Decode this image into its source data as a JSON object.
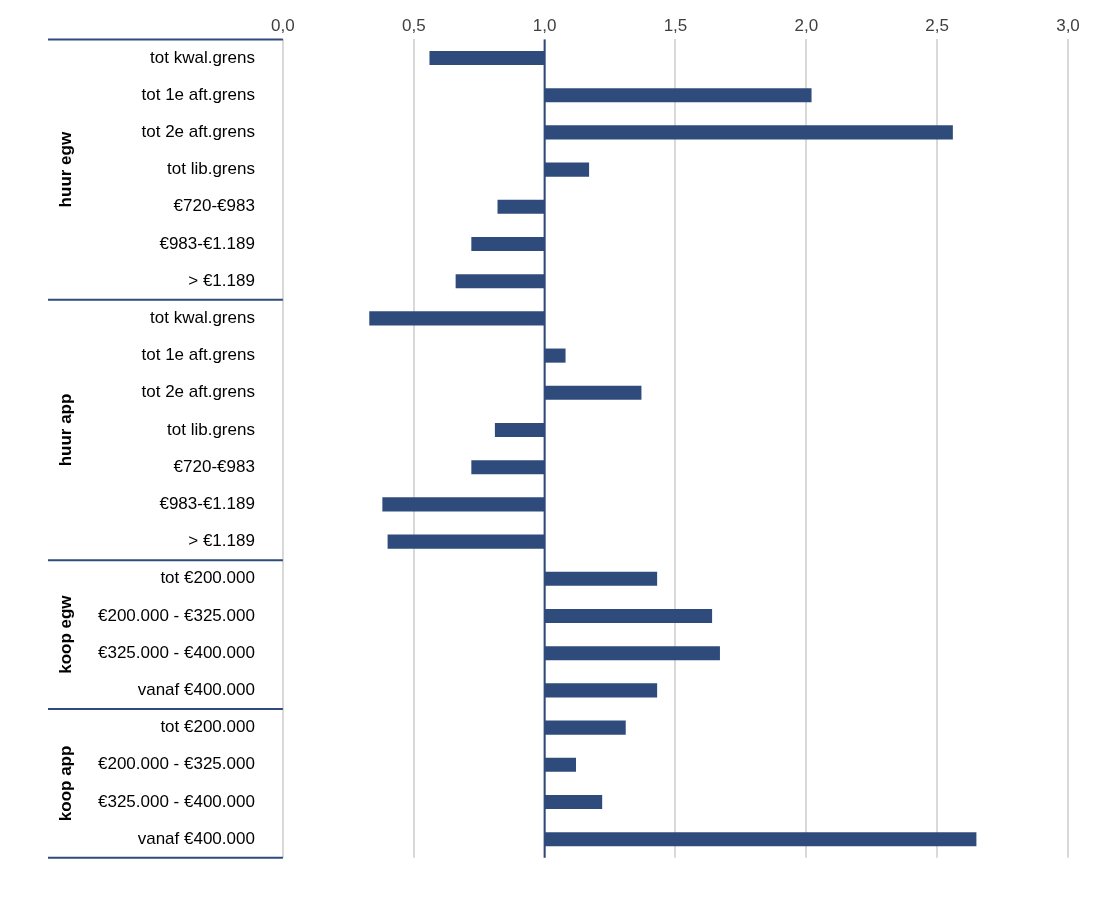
{
  "chart_data": {
    "type": "bar",
    "orientation": "horizontal",
    "categories": [
      "tot kwal.grens",
      "tot 1e aft.grens",
      "tot 2e aft.grens",
      "tot lib.grens",
      "€720-€983",
      "€983-€1.189",
      "> €1.189",
      "tot kwal.grens",
      "tot 1e aft.grens",
      "tot 2e aft.grens",
      "tot lib.grens",
      "€720-€983",
      "€983-€1.189",
      "> €1.189",
      "tot €200.000",
      "€200.000 - €325.000",
      "€325.000 - €400.000",
      "vanaf €400.000",
      "tot €200.000",
      "€200.000 - €325.000",
      "€325.000 - €400.000",
      "vanaf €400.000"
    ],
    "base": [
      1,
      1,
      1,
      1,
      1,
      1,
      1,
      1,
      1,
      1,
      1,
      1,
      1,
      1,
      1,
      1,
      1,
      1,
      1,
      1,
      1,
      1
    ],
    "values": [
      -0.44,
      1.02,
      1.56,
      0.17,
      -0.18,
      -0.28,
      -0.34,
      -0.67,
      0.08,
      0.37,
      -0.19,
      -0.28,
      -0.62,
      -0.6,
      0.43,
      0.64,
      0.67,
      0.43,
      0.31,
      0.12,
      0.22,
      1.65
    ],
    "color": "#2f4b7c",
    "xlim": [
      0,
      3
    ],
    "xticks": [
      {
        "value": 0,
        "label": "0,0"
      },
      {
        "value": 0.5,
        "label": "0,5"
      },
      {
        "value": 1,
        "label": "1,0"
      },
      {
        "value": 1.5,
        "label": "1,5"
      },
      {
        "value": 2,
        "label": "2,0"
      },
      {
        "value": 2.5,
        "label": "2,5"
      },
      {
        "value": 3,
        "label": "3,0"
      }
    ],
    "grid": "x",
    "ref_lines": [
      {
        "axis": "x",
        "value": 1,
        "color": "#2f4b7c"
      }
    ],
    "annotations": [
      "huur egw",
      "huur app",
      "koop egw",
      "koop app"
    ]
  }
}
